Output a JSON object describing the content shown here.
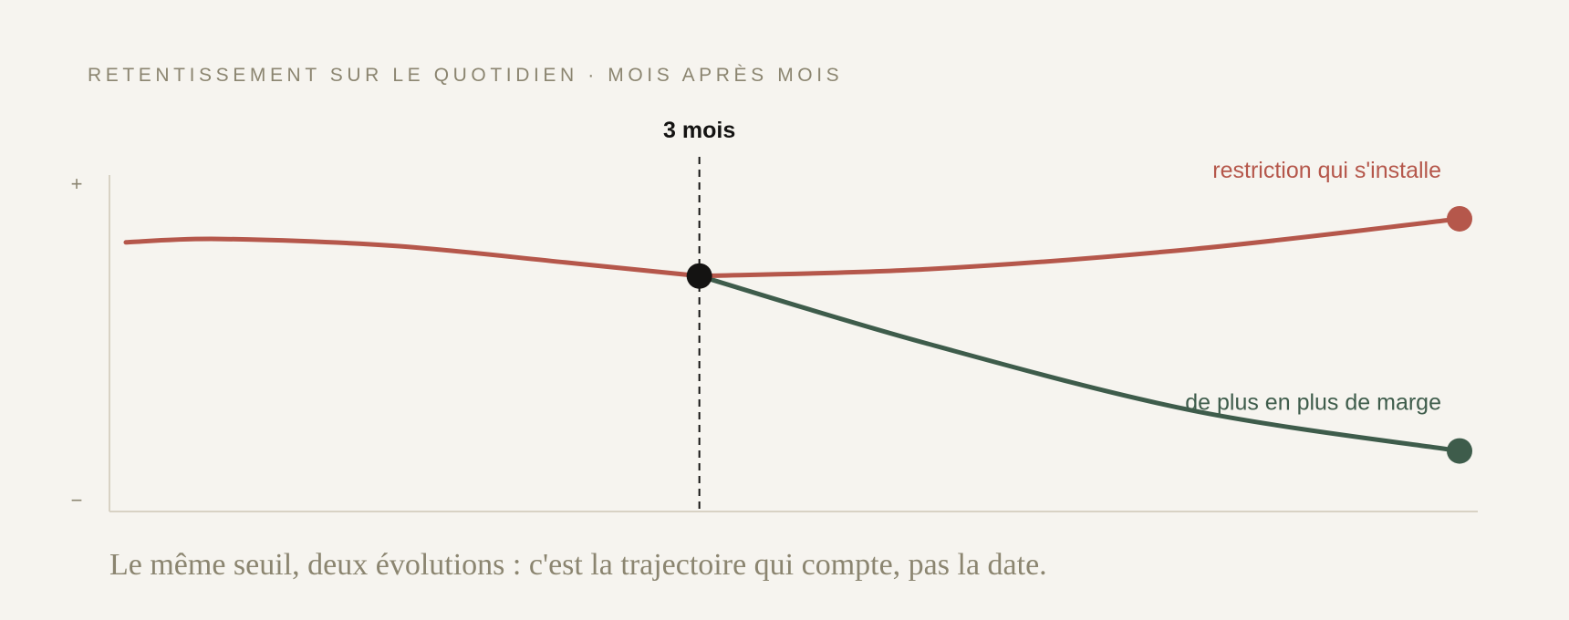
{
  "header": {
    "title": "RETENTISSEMENT SUR LE QUOTIDIEN · MOIS APRÈS MOIS"
  },
  "caption": "Le même seuil, deux évolutions : c'est la trajectoire qui compte, pas la date.",
  "chart_data": {
    "type": "line",
    "title": "RETENTISSEMENT SUR LE QUOTIDIEN · MOIS APRÈS MOIS",
    "xlabel": "",
    "ylabel": "",
    "y_ticks": [
      "+",
      "−"
    ],
    "ylim": [
      0,
      1
    ],
    "xlim": [
      0,
      1
    ],
    "grid": false,
    "marker": {
      "x": 0.43,
      "y": 0.7,
      "label": "3 mois"
    },
    "shared_path": {
      "x": [
        0,
        0.07,
        0.2,
        0.33,
        0.43
      ],
      "y": [
        0.8,
        0.81,
        0.79,
        0.74,
        0.7
      ]
    },
    "series": [
      {
        "name": "restriction qui s'installe",
        "color": "#b5574b",
        "x": [
          0.43,
          0.6,
          0.8,
          1.0
        ],
        "y": [
          0.7,
          0.72,
          0.78,
          0.87
        ]
      },
      {
        "name": "de plus en plus de marge",
        "color": "#3e5c4b",
        "x": [
          0.43,
          0.6,
          0.8,
          1.0
        ],
        "y": [
          0.7,
          0.5,
          0.3,
          0.18
        ]
      }
    ],
    "colors": {
      "axis": "#d8d2c4",
      "marker": "#141312",
      "muted": "#8b8570"
    }
  }
}
